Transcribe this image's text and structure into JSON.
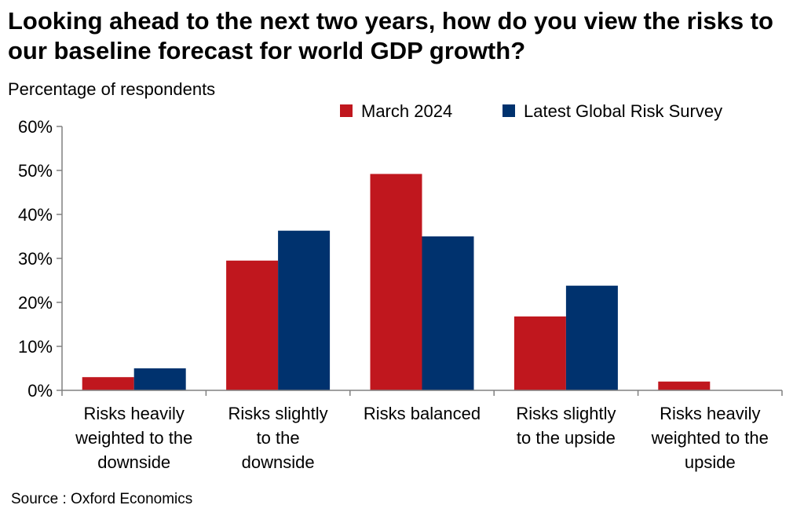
{
  "title": "Looking ahead to the next two years, how do you view the risks to our baseline forecast for world GDP growth?",
  "subtitle": "Percentage of respondents",
  "source": "Source : Oxford Economics",
  "colors": {
    "march": "#c0171e",
    "latest": "#00326e"
  },
  "chart_data": {
    "type": "bar",
    "ylabel": "Percentage of respondents",
    "ylim": [
      0,
      60
    ],
    "yticks": [
      "0%",
      "10%",
      "20%",
      "30%",
      "40%",
      "50%",
      "60%"
    ],
    "grid": false,
    "legend_position": "top-right",
    "categories": [
      [
        "Risks heavily",
        "weighted to the",
        "downside"
      ],
      [
        "Risks slightly",
        "to the",
        "downside"
      ],
      [
        "Risks balanced"
      ],
      [
        "Risks slightly",
        "to the upside"
      ],
      [
        "Risks heavily",
        "weighted to the",
        "upside"
      ]
    ],
    "series": [
      {
        "name": "March 2024",
        "color": "#c0171e",
        "values": [
          3,
          29.5,
          49.2,
          16.8,
          2
        ]
      },
      {
        "name": "Latest Global Risk Survey",
        "color": "#00326e",
        "values": [
          5,
          36.3,
          35,
          23.8,
          0
        ]
      }
    ]
  }
}
